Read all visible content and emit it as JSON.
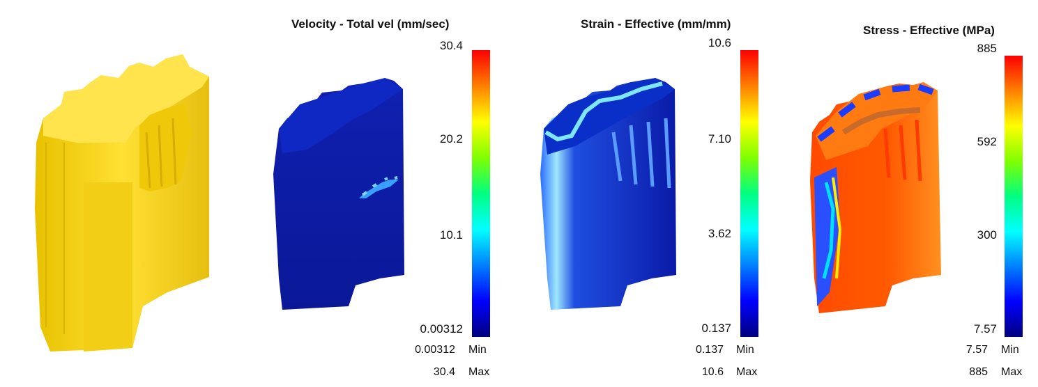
{
  "colormap": [
    "#00007f",
    "#0000ff",
    "#0080ff",
    "#00ffff",
    "#00ff80",
    "#80ff00",
    "#ffff00",
    "#ff8000",
    "#ff0000"
  ],
  "part_color": "#f2cf16",
  "panels": [
    {
      "title": "Velocity - Total vel (mm/sec)",
      "ticks": [
        "30.4",
        "20.2",
        "10.1",
        "0.00312"
      ],
      "min_value": "0.00312",
      "min_label": "Min",
      "max_value": "30.4",
      "max_label": "Max"
    },
    {
      "title": "Strain - Effective (mm/mm)",
      "ticks": [
        "10.6",
        "7.10",
        "3.62",
        "0.137"
      ],
      "min_value": "0.137",
      "min_label": "Min",
      "max_value": "10.6",
      "max_label": "Max"
    },
    {
      "title": "Stress - Effective (MPa)",
      "ticks": [
        "885",
        "592",
        "300",
        "7.57"
      ],
      "min_value": "7.57",
      "min_label": "Min",
      "max_value": "885",
      "max_label": "Max"
    }
  ]
}
